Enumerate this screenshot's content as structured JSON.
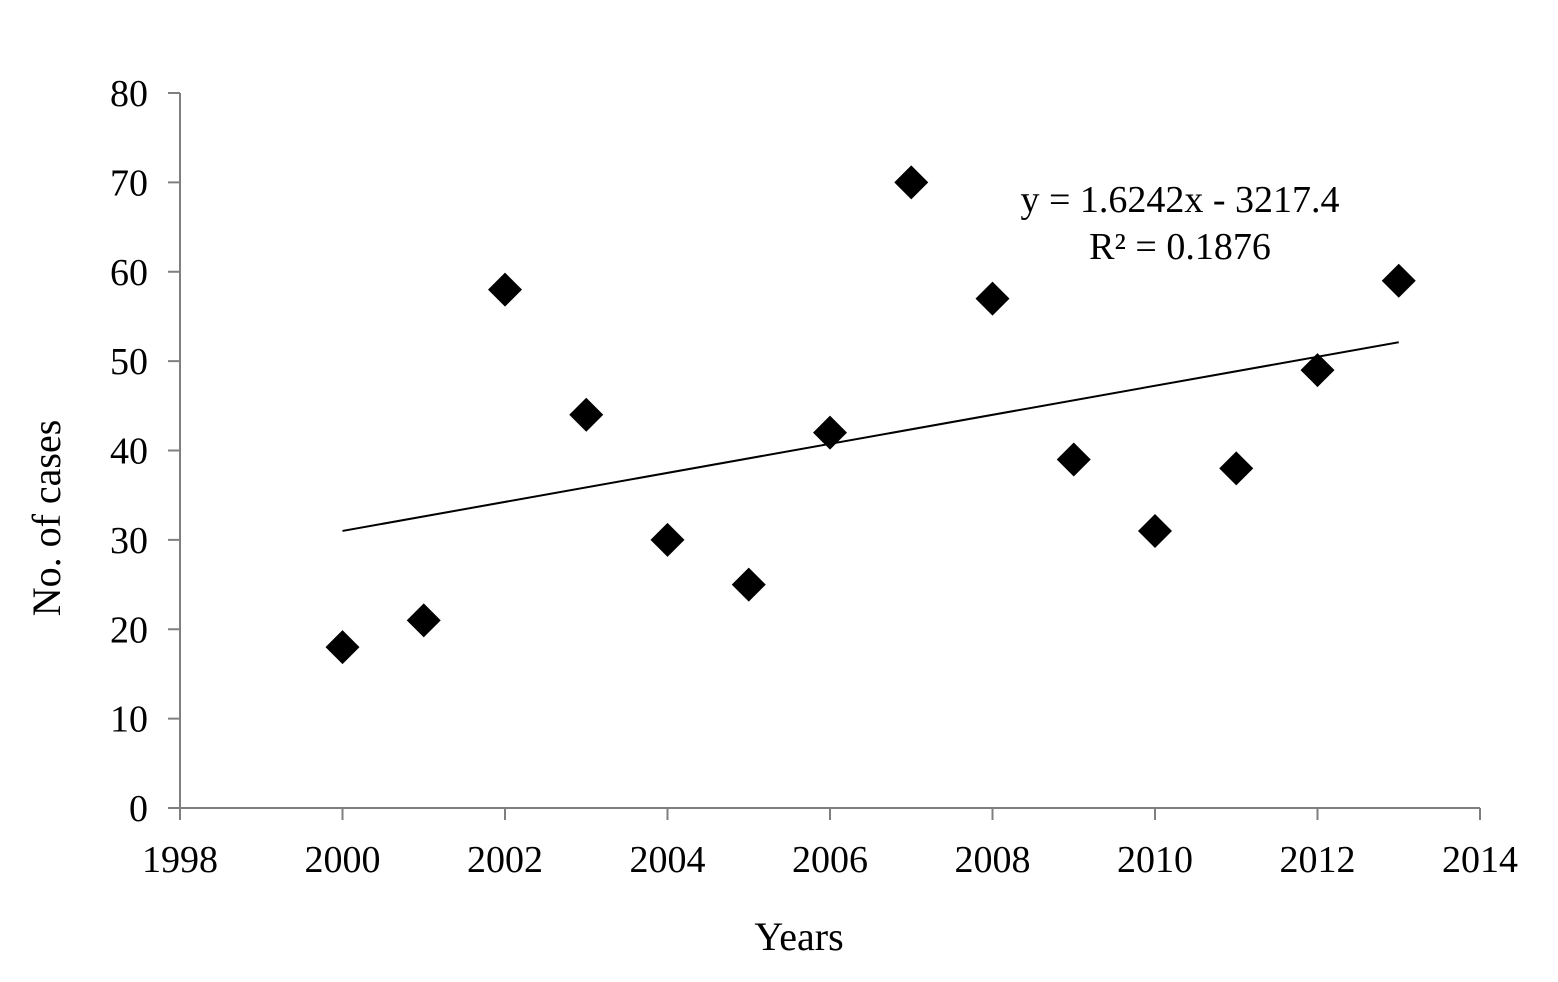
{
  "chart_data": {
    "type": "scatter",
    "title": "",
    "xlabel": "Years",
    "ylabel": "No. of cases",
    "xlim": [
      1998,
      2014
    ],
    "ylim": [
      0,
      80
    ],
    "x_ticks": [
      1998,
      2000,
      2002,
      2004,
      2006,
      2008,
      2010,
      2012,
      2014
    ],
    "y_ticks": [
      0,
      10,
      20,
      30,
      40,
      50,
      60,
      70,
      80
    ],
    "grid": false,
    "legend": "none",
    "marker": "diamond",
    "marker_color": "#000000",
    "series": [
      {
        "x": [
          2000,
          2001,
          2002,
          2003,
          2004,
          2005,
          2006,
          2007,
          2008,
          2009,
          2010,
          2011,
          2012,
          2013
        ],
        "y": [
          18,
          21,
          58,
          44,
          30,
          25,
          42,
          70,
          57,
          39,
          31,
          38,
          49,
          59
        ]
      }
    ],
    "trendline": {
      "type": "linear",
      "slope": 1.6242,
      "intercept": -3217.4,
      "x_range": [
        2000,
        2013
      ],
      "equation_text": "y = 1.6242x - 3217.4",
      "r2_text": "R² = 0.1876"
    }
  }
}
